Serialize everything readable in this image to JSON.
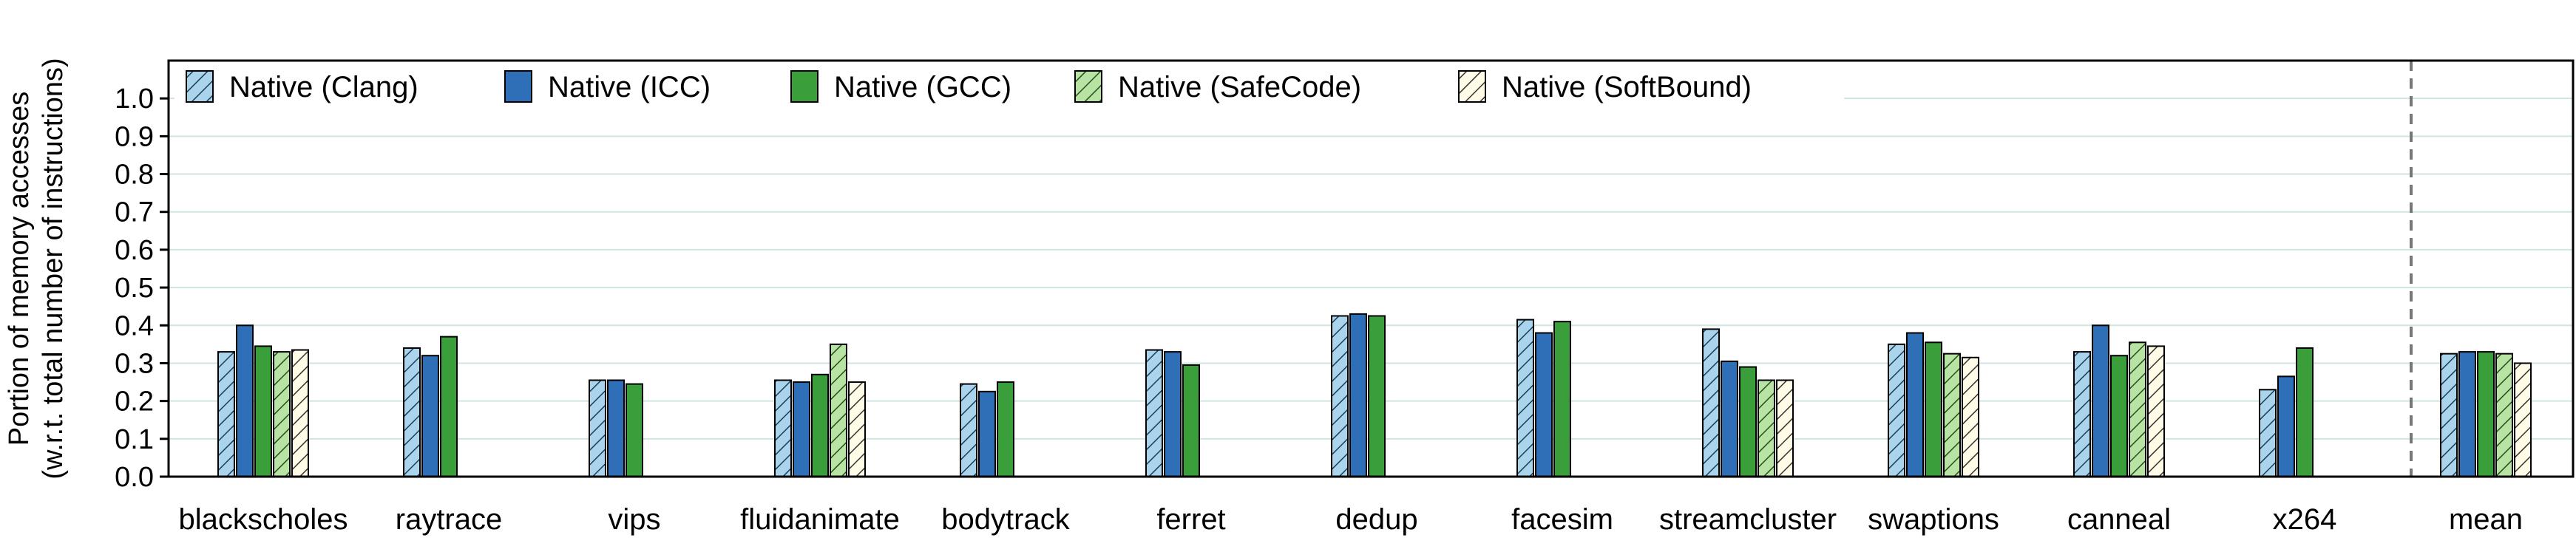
{
  "chart_data": {
    "type": "bar",
    "ylabel_line1": "Portion of memory accesses",
    "ylabel_line2": "(w.r.t. total number of instructions)",
    "ylim": [
      0,
      1.1
    ],
    "yticks": [
      "0.0",
      "0.1",
      "0.2",
      "0.3",
      "0.4",
      "0.5",
      "0.6",
      "0.7",
      "0.8",
      "0.9",
      "1.0"
    ],
    "grid": true,
    "legend_position": "top",
    "categories": [
      "blackscholes",
      "raytrace",
      "vips",
      "fluidanimate",
      "bodytrack",
      "ferret",
      "dedup",
      "facesim",
      "streamcluster",
      "swaptions",
      "canneal",
      "x264",
      "mean"
    ],
    "series": [
      {
        "name": "Native (Clang)",
        "color": "#a9d4ec",
        "pattern": "hatch",
        "values": [
          0.33,
          0.34,
          0.255,
          0.255,
          0.245,
          0.335,
          0.425,
          0.415,
          0.39,
          0.35,
          0.33,
          0.23,
          0.325
        ]
      },
      {
        "name": "Native (ICC)",
        "color": "#2e6fb8",
        "pattern": "solid",
        "values": [
          0.4,
          0.32,
          0.255,
          0.25,
          0.225,
          0.33,
          0.43,
          0.38,
          0.305,
          0.38,
          0.4,
          0.265,
          0.33
        ]
      },
      {
        "name": "Native (GCC)",
        "color": "#3a9e3a",
        "pattern": "solid",
        "values": [
          0.345,
          0.37,
          0.245,
          0.27,
          0.25,
          0.295,
          0.425,
          0.41,
          0.29,
          0.355,
          0.32,
          0.34,
          0.33
        ]
      },
      {
        "name": "Native (SafeCode)",
        "color": "#b7e3a3",
        "pattern": "hatch",
        "values": [
          0.33,
          null,
          null,
          0.35,
          null,
          null,
          null,
          null,
          0.255,
          0.325,
          0.355,
          null,
          0.325
        ]
      },
      {
        "name": "Native (SoftBound)",
        "color": "#fffbe6",
        "pattern": "hatch",
        "values": [
          0.335,
          null,
          null,
          0.25,
          null,
          null,
          null,
          null,
          0.255,
          0.315,
          0.345,
          null,
          0.3
        ]
      }
    ],
    "separator_before": "mean"
  }
}
